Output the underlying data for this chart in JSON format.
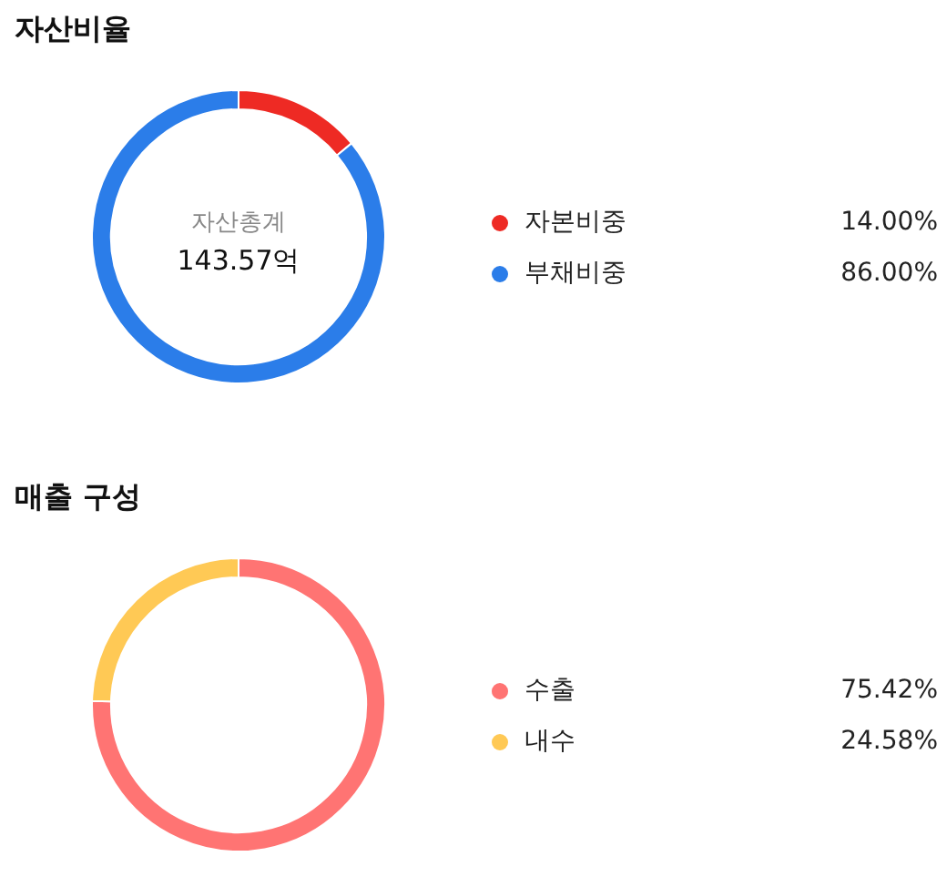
{
  "chart_data": [
    {
      "type": "donut",
      "title": "자산비율",
      "categories": [
        "자본비중",
        "부채비중"
      ],
      "values": [
        14.0,
        86.0
      ],
      "colors": [
        "#ee2a24",
        "#2b7de9"
      ],
      "value_labels": [
        "14.00%",
        "86.00%"
      ],
      "legend": "right",
      "annotations": [
        "자산총계",
        "143.57억"
      ]
    },
    {
      "type": "donut",
      "title": "매출 구성",
      "categories": [
        "수출",
        "내수"
      ],
      "values": [
        75.42,
        24.58
      ],
      "colors": [
        "#ff7473",
        "#ffc955"
      ],
      "value_labels": [
        "75.42%",
        "24.58%"
      ],
      "legend": "right"
    }
  ]
}
